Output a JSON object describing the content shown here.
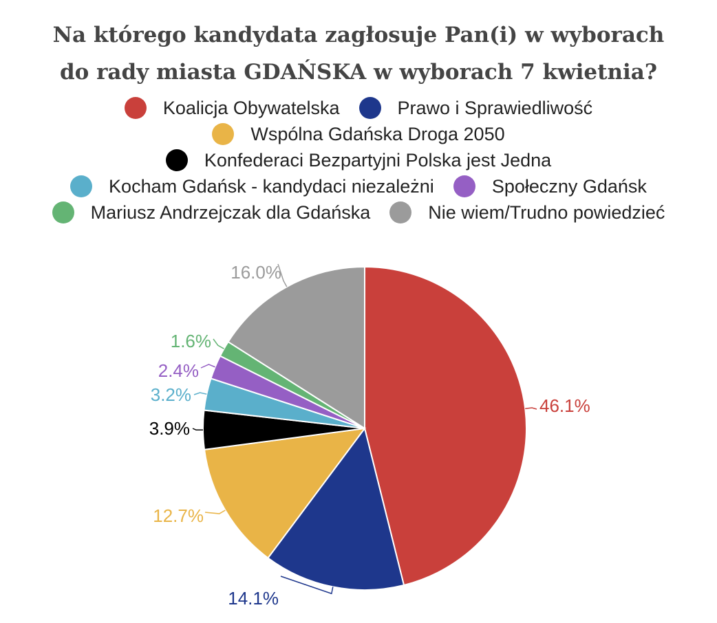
{
  "title_lines": [
    "Na którego kandydata zagłosuje Pan(i) w wyborach",
    "do rady miasta GDAŃSKA w wyborach 7 kwietnia?"
  ],
  "chart_data": {
    "type": "pie",
    "title": "Na którego kandydata zagłosuje Pan(i) w wyborach do rady miasta GDAŃSKA w wyborach 7 kwietnia?",
    "legend_position": "top",
    "slices": [
      {
        "name": "Koalicja Obywatelska",
        "value": 46.1,
        "label": "46.1%",
        "color": "#c9403b"
      },
      {
        "name": "Prawo i Sprawiedliwość",
        "value": 14.1,
        "label": "14.1%",
        "color": "#1e378c"
      },
      {
        "name": "Wspólna Gdańska Droga 2050",
        "value": 12.7,
        "label": "12.7%",
        "color": "#e9b447"
      },
      {
        "name": "Konfederaci Bezpartyjni Polska jest Jedna",
        "value": 3.9,
        "label": "3.9%",
        "color": "#000000"
      },
      {
        "name": "Kocham Gdańsk - kandydaci niezależni",
        "value": 3.2,
        "label": "3.2%",
        "color": "#5aafcb"
      },
      {
        "name": "Społeczny Gdańsk",
        "value": 2.4,
        "label": "2.4%",
        "color": "#955fc4"
      },
      {
        "name": "Mariusz Andrzejczak dla Gdańska",
        "value": 1.6,
        "label": "1.6%",
        "color": "#64b474"
      },
      {
        "name": "Nie wiem/Trudno powiedzieć",
        "value": 16.0,
        "label": "16.0%",
        "color": "#9b9b9b"
      }
    ]
  },
  "legend_rows": [
    [
      0,
      1
    ],
    [
      2
    ],
    [
      3
    ],
    [
      4,
      5
    ],
    [
      6,
      7
    ]
  ]
}
